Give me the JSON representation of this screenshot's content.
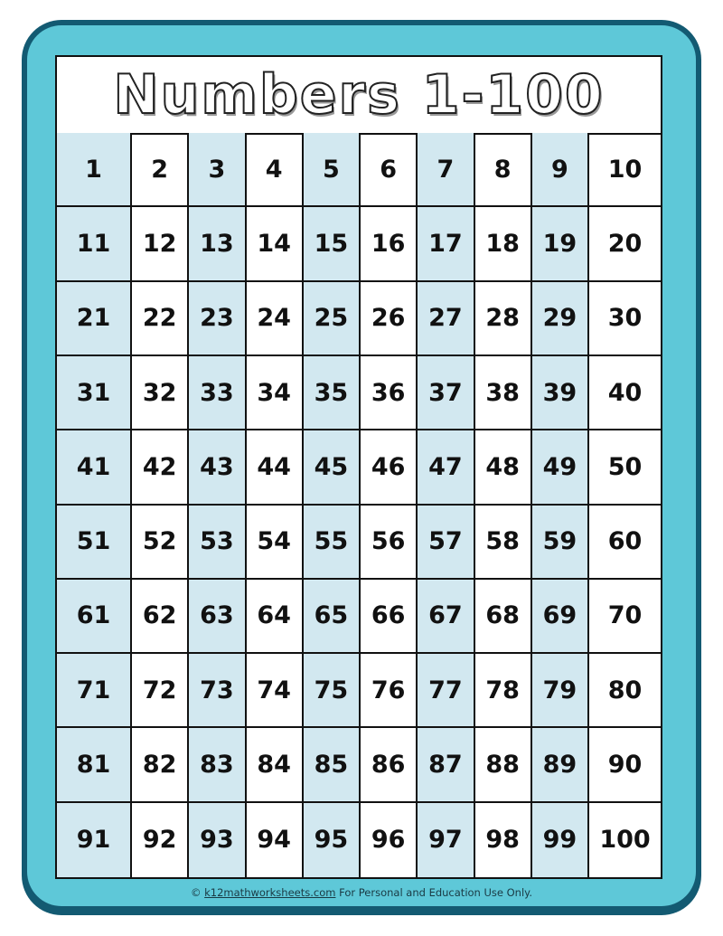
{
  "title": "Numbers 1-100",
  "colors": {
    "frame_dark": "#135a72",
    "frame_light": "#5ec8d8",
    "shade": "#d2e8f0"
  },
  "shaded_columns": [
    1,
    3,
    5,
    7,
    9
  ],
  "grid": [
    [
      "1",
      "2",
      "3",
      "4",
      "5",
      "6",
      "7",
      "8",
      "9",
      "10"
    ],
    [
      "11",
      "12",
      "13",
      "14",
      "15",
      "16",
      "17",
      "18",
      "19",
      "20"
    ],
    [
      "21",
      "22",
      "23",
      "24",
      "25",
      "26",
      "27",
      "28",
      "29",
      "30"
    ],
    [
      "31",
      "32",
      "33",
      "34",
      "35",
      "36",
      "37",
      "38",
      "39",
      "40"
    ],
    [
      "41",
      "42",
      "43",
      "44",
      "45",
      "46",
      "47",
      "48",
      "49",
      "50"
    ],
    [
      "51",
      "52",
      "53",
      "54",
      "55",
      "56",
      "57",
      "58",
      "59",
      "60"
    ],
    [
      "61",
      "62",
      "63",
      "64",
      "65",
      "66",
      "67",
      "68",
      "69",
      "70"
    ],
    [
      "71",
      "72",
      "73",
      "74",
      "75",
      "76",
      "77",
      "78",
      "79",
      "80"
    ],
    [
      "81",
      "82",
      "83",
      "84",
      "85",
      "86",
      "87",
      "88",
      "89",
      "90"
    ],
    [
      "91",
      "92",
      "93",
      "94",
      "95",
      "96",
      "97",
      "98",
      "99",
      "100"
    ]
  ],
  "footer": {
    "copyright": "©",
    "link": "k12mathworksheets.com",
    "text": "For Personal and Education Use Only."
  }
}
